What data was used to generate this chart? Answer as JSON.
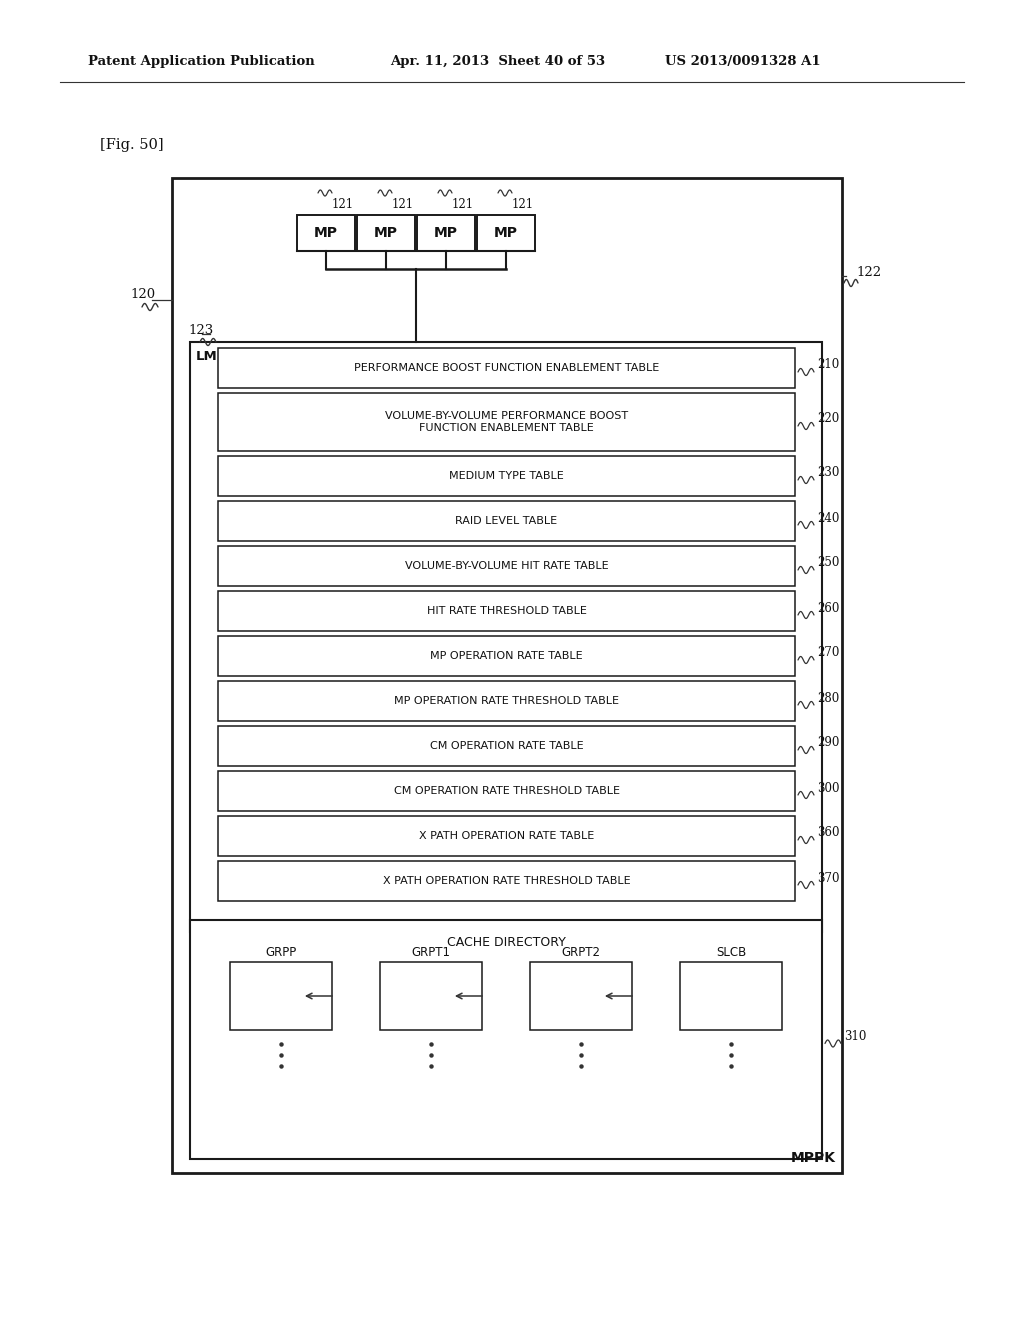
{
  "bg_color": "#ffffff",
  "header_left": "Patent Application Publication",
  "header_mid": "Apr. 11, 2013  Sheet 40 of 53",
  "header_right": "US 2013/0091328 A1",
  "fig_label": "[Fig. 50]",
  "mp_texts": [
    "MP",
    "MP",
    "MP",
    "MP"
  ],
  "mp_refs": [
    "121",
    "121",
    "121",
    "121"
  ],
  "lm_label": "LM",
  "table_rows": [
    {
      "text": "PERFORMANCE BOOST FUNCTION ENABLEMENT TABLE",
      "ref": "210",
      "lines": 1
    },
    {
      "text": "VOLUME-BY-VOLUME PERFORMANCE BOOST\nFUNCTION ENABLEMENT TABLE",
      "ref": "220",
      "lines": 2
    },
    {
      "text": "MEDIUM TYPE TABLE",
      "ref": "230",
      "lines": 1
    },
    {
      "text": "RAID LEVEL TABLE",
      "ref": "240",
      "lines": 1
    },
    {
      "text": "VOLUME-BY-VOLUME HIT RATE TABLE",
      "ref": "250",
      "lines": 1
    },
    {
      "text": "HIT RATE THRESHOLD TABLE",
      "ref": "260",
      "lines": 1
    },
    {
      "text": "MP OPERATION RATE TABLE",
      "ref": "270",
      "lines": 1
    },
    {
      "text": "MP OPERATION RATE THRESHOLD TABLE",
      "ref": "280",
      "lines": 1
    },
    {
      "text": "CM OPERATION RATE TABLE",
      "ref": "290",
      "lines": 1
    },
    {
      "text": "CM OPERATION RATE THRESHOLD TABLE",
      "ref": "300",
      "lines": 1
    },
    {
      "text": "X PATH OPERATION RATE TABLE",
      "ref": "360",
      "lines": 1
    },
    {
      "text": "X PATH OPERATION RATE THRESHOLD TABLE",
      "ref": "370",
      "lines": 1
    }
  ],
  "cache_cols": [
    "GRPP",
    "GRPT1",
    "GRPT2",
    "SLCB"
  ],
  "cache_ref": "310",
  "mppk_label": "MPPK",
  "ref_120": "120",
  "ref_122": "122",
  "ref_123": "123"
}
